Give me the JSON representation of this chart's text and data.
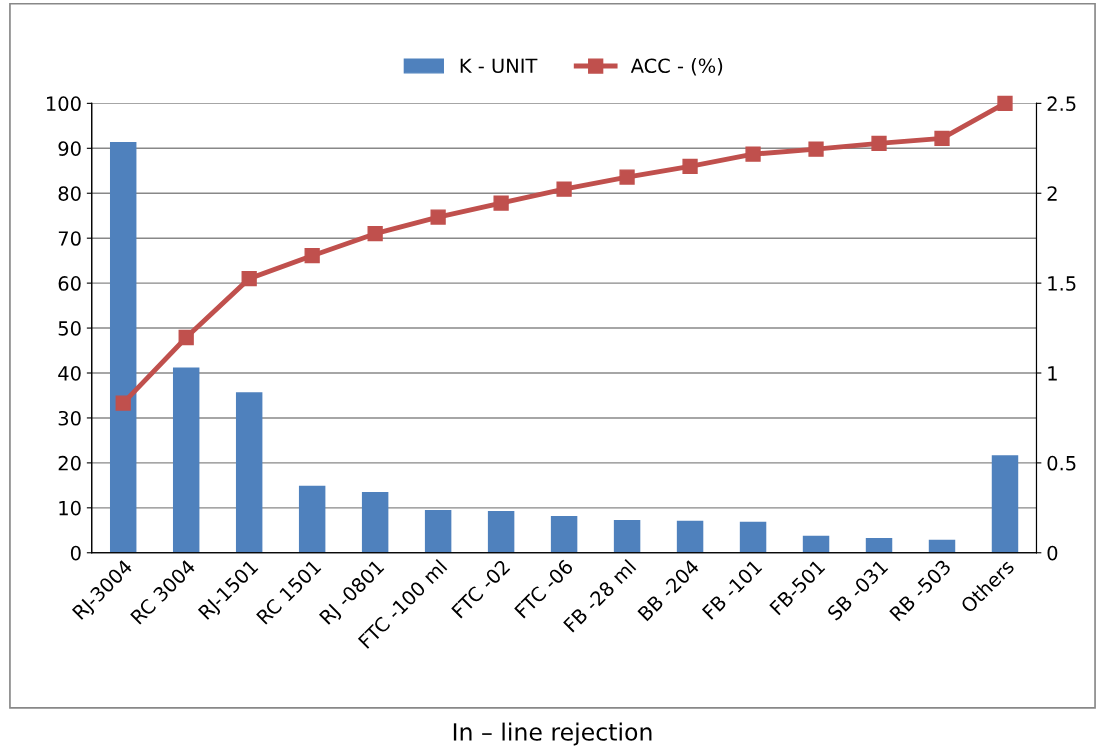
{
  "chart_data": {
    "type": "bar",
    "title": "In – line rejection",
    "categories": [
      "RJ-3004",
      "RC 3004",
      "RJ-1501",
      "RC 1501",
      "RJ -0801",
      "FTC -100 ml",
      "FTC -02",
      "FTC -06",
      "FB -28 ml",
      "BB -204",
      "FB -101",
      "FB-501",
      "SB -031",
      "RB -503",
      "Others"
    ],
    "series": [
      {
        "name": "K - UNIT",
        "color": "#4f81bd",
        "values": [
          91.4,
          41.2,
          35.7,
          14.9,
          13.5,
          9.5,
          9.3,
          8.2,
          7.3,
          7.1,
          6.9,
          3.8,
          3.3,
          2.9,
          21.7
        ]
      },
      {
        "name": "ACC - (%)",
        "type": "line",
        "color": "#c0504d",
        "marker": "square",
        "values": [
          33.3,
          47.9,
          61.0,
          66.1,
          71.0,
          74.7,
          77.8,
          80.9,
          83.6,
          86.0,
          88.7,
          89.8,
          91.1,
          92.2,
          100
        ]
      }
    ],
    "ylim": [
      0,
      100
    ],
    "yticks": [
      0,
      10,
      20,
      30,
      40,
      50,
      60,
      70,
      80,
      90,
      100
    ],
    "y2lim": [
      0,
      2.5
    ],
    "y2ticks": [
      0,
      0.5,
      1,
      1.5,
      2,
      2.5
    ],
    "grid": "y",
    "legend": "top"
  }
}
